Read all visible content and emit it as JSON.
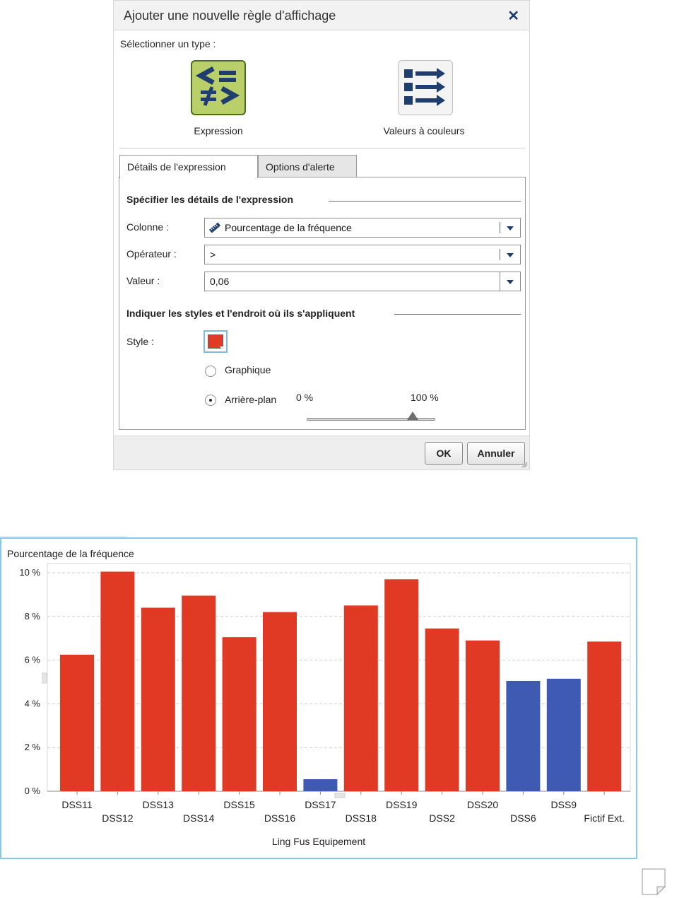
{
  "dialog": {
    "title": "Ajouter une nouvelle règle d'affichage",
    "close_symbol": "✕",
    "select_type_label": "Sélectionner un type :",
    "types": [
      {
        "label": "Expression",
        "icon": "compare-operators-icon",
        "selected": true
      },
      {
        "label": "Valeurs à couleurs",
        "icon": "color-values-list-icon",
        "selected": false
      }
    ],
    "tabs": [
      {
        "label": "Détails de l'expression",
        "active": true
      },
      {
        "label": "Options d'alerte",
        "active": false
      }
    ],
    "section_details_title": "Spécifier les détails de l'expression",
    "fields": {
      "column_label": "Colonne :",
      "column_value": "Pourcentage de la fréquence",
      "column_icon": "measure-ruler-icon",
      "operator_label": "Opérateur :",
      "operator_value": ">",
      "value_label": "Valeur :",
      "value_value": "0,06"
    },
    "section_styles_title": "Indiquer les styles et l'endroit où ils s'appliquent",
    "style_label": "Style :",
    "style_color": "#e03a24",
    "radios": [
      {
        "label": "Graphique",
        "checked": false
      },
      {
        "label": "Arrière-plan",
        "checked": true
      }
    ],
    "slider": {
      "min_label": "0 %",
      "max_label": "100 %",
      "value": 0.83
    },
    "buttons": {
      "ok": "OK",
      "cancel": "Annuler"
    }
  },
  "chart_data": {
    "type": "bar",
    "title": "Pourcentage de la fréquence",
    "xlabel": "Ling Fus Equipement",
    "ylabel": "",
    "ylim": [
      0,
      10
    ],
    "yticks": [
      {
        "value": 0,
        "label": "0 %"
      },
      {
        "value": 2,
        "label": "2 %"
      },
      {
        "value": 4,
        "label": "4 %"
      },
      {
        "value": 6,
        "label": "6 %"
      },
      {
        "value": 8,
        "label": "8 %"
      },
      {
        "value": 10,
        "label": "10 %"
      }
    ],
    "grid": true,
    "categories": [
      "DSS11",
      "DSS12",
      "DSS13",
      "DSS14",
      "DSS15",
      "DSS16",
      "DSS17",
      "DSS18",
      "DSS19",
      "DSS2",
      "DSS20",
      "DSS6",
      "DSS9",
      "Fictif Ext."
    ],
    "values": [
      6.25,
      10.05,
      8.4,
      8.95,
      7.05,
      8.2,
      0.55,
      8.5,
      9.7,
      7.45,
      6.9,
      5.05,
      5.15,
      6.85
    ],
    "highlight_color": "#e03a24",
    "base_color": "#3e5ab3",
    "highlight_threshold": 6
  }
}
